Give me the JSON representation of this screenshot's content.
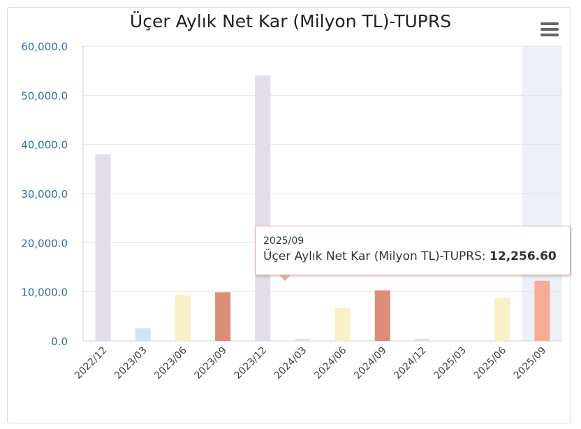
{
  "chart_data": {
    "type": "bar",
    "title": "Üçer Aylık Net Kar (Milyon TL)-TUPRS",
    "categories": [
      "2022/12",
      "2023/03",
      "2023/06",
      "2023/09",
      "2023/12",
      "2024/03",
      "2024/06",
      "2024/09",
      "2024/12",
      "2025/03",
      "2025/06",
      "2025/09"
    ],
    "values": [
      38000,
      2600,
      9400,
      9900,
      54000,
      450,
      6700,
      10300,
      450,
      0,
      8800,
      12256.6
    ],
    "bar_colors": [
      "#e2dde9",
      "#d3e4ef",
      "#f9efc9",
      "#da8d78",
      "#e2dde9",
      "#d3e4ef",
      "#f9efc9",
      "#da8d78",
      "#e2dde9",
      "#d3e4ef",
      "#f9efc9",
      "#f6ab97"
    ],
    "ylim": [
      0,
      60000
    ],
    "yticks": [
      "0.0",
      "10,000.0",
      "20,000.0",
      "30,000.0",
      "40,000.0",
      "50,000.0",
      "60,000.0"
    ],
    "grid": true,
    "highlighted_category": "2025/09",
    "tooltip": {
      "date": "2025/09",
      "series_label": "Üçer Aylık Net Kar (Milyon TL)-TUPRS: ",
      "value": "12,256.60"
    }
  },
  "menu_icon": "hamburger-menu-icon"
}
